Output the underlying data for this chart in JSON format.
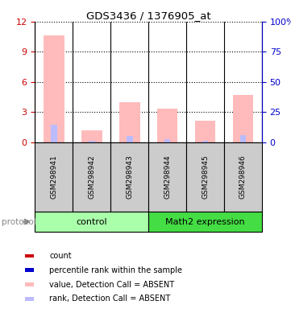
{
  "title": "GDS3436 / 1376905_at",
  "samples": [
    "GSM298941",
    "GSM298942",
    "GSM298943",
    "GSM298944",
    "GSM298945",
    "GSM298946"
  ],
  "pink_bar_heights": [
    10.6,
    1.2,
    4.0,
    3.3,
    2.1,
    4.7
  ],
  "blue_bar_heights": [
    14.2,
    1.25,
    5.0,
    2.5,
    0.8,
    5.8
  ],
  "ylim_left": [
    0,
    12
  ],
  "ylim_right": [
    0,
    100
  ],
  "yticks_left": [
    0,
    3,
    6,
    9,
    12
  ],
  "yticks_right": [
    0,
    25,
    50,
    75,
    100
  ],
  "yticklabels_left": [
    "0",
    "3",
    "6",
    "9",
    "12"
  ],
  "yticklabels_right": [
    "0",
    "25",
    "50",
    "75",
    "100%"
  ],
  "pink_color": "#ffbbbb",
  "blue_color": "#bbbbff",
  "left_tick_color": "#cc0000",
  "right_tick_color": "#0000cc",
  "control_color": "#aaffaa",
  "math2_color": "#44dd44",
  "sample_bg_color": "#cccccc",
  "bar_width": 0.55,
  "groups_info": [
    {
      "label": "control",
      "start": 0,
      "end": 2,
      "color": "#aaffaa"
    },
    {
      "label": "Math2 expression",
      "start": 3,
      "end": 5,
      "color": "#44dd44"
    }
  ],
  "legend_items": [
    {
      "label": "count",
      "color": "#cc0000"
    },
    {
      "label": "percentile rank within the sample",
      "color": "#0000cc"
    },
    {
      "label": "value, Detection Call = ABSENT",
      "color": "#ffbbbb"
    },
    {
      "label": "rank, Detection Call = ABSENT",
      "color": "#bbbbff"
    }
  ]
}
